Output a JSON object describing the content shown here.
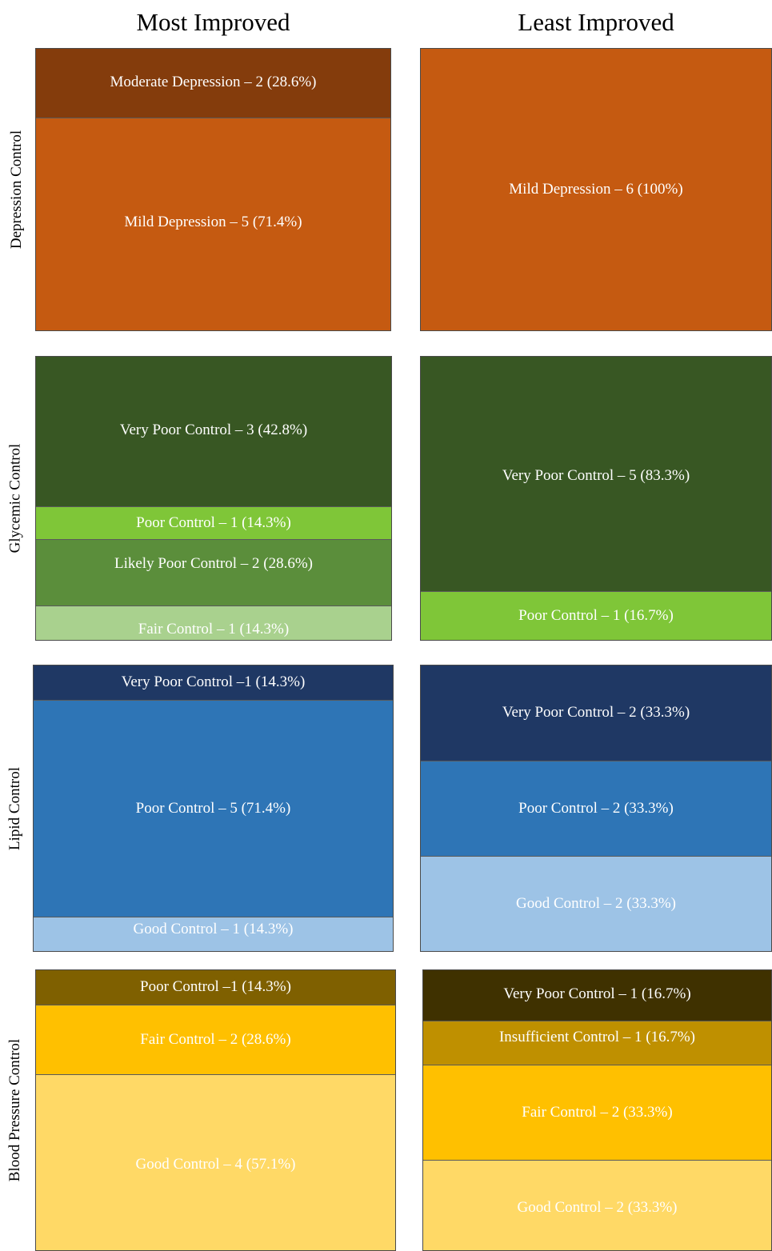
{
  "columns": {
    "most_improved": "Most Improved",
    "least_improved": "Least Improved"
  },
  "rows": {
    "depression": "Depression Control",
    "glycemic": "Glycemic Control",
    "lipid": "Lipid Control",
    "blood_pressure": "Blood Pressure Control"
  },
  "chart_data": [
    {
      "type": "bar",
      "group": "Most Improved",
      "row": "Depression Control",
      "segments": [
        {
          "label": "Moderate Depression – 2 (28.6%)",
          "count": 2,
          "percent": 28.6,
          "color": "#843c0c"
        },
        {
          "label": "Mild Depression – 5 (71.4%)",
          "count": 5,
          "percent": 71.4,
          "color": "#c55a11"
        }
      ]
    },
    {
      "type": "bar",
      "group": "Least Improved",
      "row": "Depression Control",
      "segments": [
        {
          "label": "Mild Depression – 6 (100%)",
          "count": 6,
          "percent": 100,
          "color": "#c55a11"
        }
      ]
    },
    {
      "type": "bar",
      "group": "Most Improved",
      "row": "Glycemic Control",
      "segments": [
        {
          "label": "Very Poor Control – 3 (42.8%)",
          "count": 3,
          "percent": 42.8,
          "color": "#385723"
        },
        {
          "label": "Poor Control – 1 (14.3%)",
          "count": 1,
          "percent": 14.3,
          "color": "#7fc638"
        },
        {
          "label": "Likely Poor Control – 2 (28.6%)",
          "count": 2,
          "percent": 28.6,
          "color": "#5b8e3b"
        },
        {
          "label": "Fair Control – 1 (14.3%)",
          "count": 1,
          "percent": 14.3,
          "color": "#a9d18e"
        }
      ]
    },
    {
      "type": "bar",
      "group": "Least Improved",
      "row": "Glycemic Control",
      "segments": [
        {
          "label": "Very Poor Control – 5 (83.3%)",
          "count": 5,
          "percent": 83.3,
          "color": "#385723"
        },
        {
          "label": "Poor Control – 1 (16.7%)",
          "count": 1,
          "percent": 16.7,
          "color": "#7fc638"
        }
      ]
    },
    {
      "type": "bar",
      "group": "Most Improved",
      "row": "Lipid Control",
      "segments": [
        {
          "label": "Very Poor Control –1 (14.3%)",
          "count": 1,
          "percent": 14.3,
          "color": "#1f3864"
        },
        {
          "label": "Poor Control – 5 (71.4%)",
          "count": 5,
          "percent": 71.4,
          "color": "#2e75b6"
        },
        {
          "label": "Good Control – 1 (14.3%)",
          "count": 1,
          "percent": 14.3,
          "color": "#9dc3e6"
        }
      ]
    },
    {
      "type": "bar",
      "group": "Least Improved",
      "row": "Lipid Control",
      "segments": [
        {
          "label": "Very Poor Control – 2 (33.3%)",
          "count": 2,
          "percent": 33.3,
          "color": "#1f3864"
        },
        {
          "label": "Poor Control – 2 (33.3%)",
          "count": 2,
          "percent": 33.3,
          "color": "#2e75b6"
        },
        {
          "label": "Good Control – 2 (33.3%)",
          "count": 2,
          "percent": 33.3,
          "color": "#9dc3e6"
        }
      ]
    },
    {
      "type": "bar",
      "group": "Most Improved",
      "row": "Blood Pressure Control",
      "segments": [
        {
          "label": "Poor Control –1 (14.3%)",
          "count": 1,
          "percent": 14.3,
          "color": "#7f6000"
        },
        {
          "label": "Fair Control – 2 (28.6%)",
          "count": 2,
          "percent": 28.6,
          "color": "#ffc000"
        },
        {
          "label": "Good Control – 4 (57.1%)",
          "count": 4,
          "percent": 57.1,
          "color": "#ffd966"
        }
      ]
    },
    {
      "type": "bar",
      "group": "Least Improved",
      "row": "Blood Pressure Control",
      "segments": [
        {
          "label": "Very Poor Control – 1 (16.7%)",
          "count": 1,
          "percent": 16.7,
          "color": "#3f3100"
        },
        {
          "label": "Insufficient Control – 1 (16.7%)",
          "count": 1,
          "percent": 16.7,
          "color": "#bf9000"
        },
        {
          "label": "Fair Control – 2 (33.3%)",
          "count": 2,
          "percent": 33.3,
          "color": "#ffc000"
        },
        {
          "label": "Good Control – 2 (33.3%)",
          "count": 2,
          "percent": 33.3,
          "color": "#ffd966"
        }
      ]
    }
  ]
}
